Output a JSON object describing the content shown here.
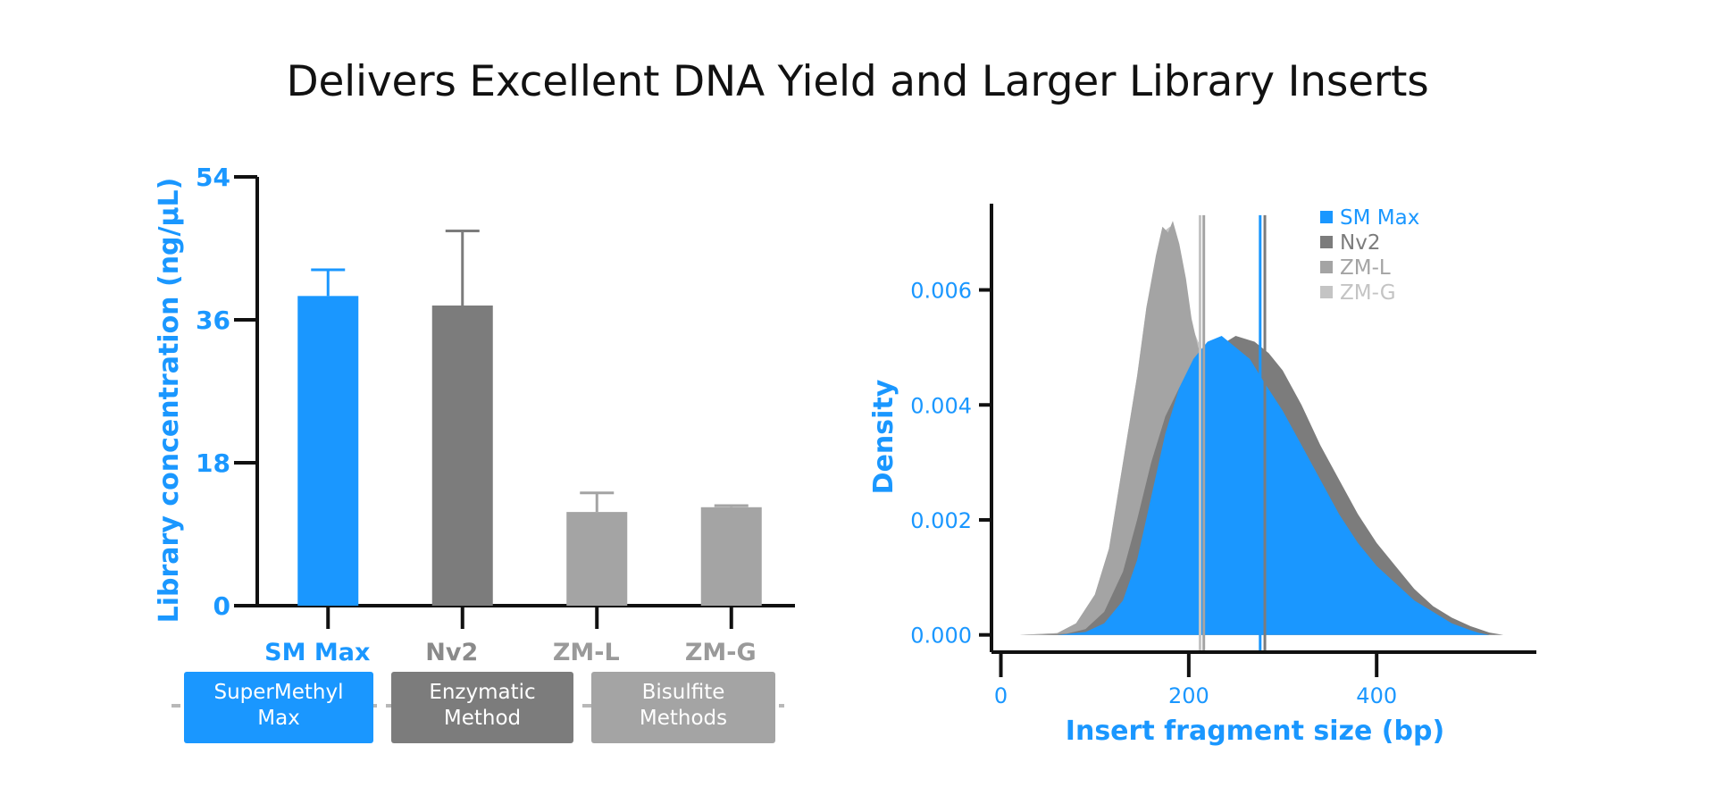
{
  "page": {
    "title": "Delivers Excellent DNA Yield and Larger Library Inserts"
  },
  "colors": {
    "accent_blue": "#1a97ff",
    "dark_gray": "#7c7c7c",
    "mid_gray": "#a4a4a4",
    "light_gray": "#c4c4c4",
    "axis": "#111111"
  },
  "chart_data": [
    {
      "type": "bar",
      "ylabel": "Library concentration (ng/µL)",
      "ylim": [
        0,
        54
      ],
      "yticks": [
        0,
        18,
        36,
        54
      ],
      "categories": [
        "SM Max",
        "Nv2",
        "ZM-L",
        "ZM-G"
      ],
      "values": [
        39,
        37.8,
        11.8,
        12.4
      ],
      "error_upper": [
        42.3,
        47.2,
        14.2,
        12.6
      ],
      "bar_colors": [
        "#1a97ff",
        "#7c7c7c",
        "#a4a4a4",
        "#a4a4a4"
      ],
      "label_colors": [
        "#1a97ff",
        "#8a8a8a",
        "#9a9a9a",
        "#9a9a9a"
      ],
      "groups": [
        {
          "label_lines": [
            "SuperMethyl",
            "Max"
          ],
          "color": "#1a97ff"
        },
        {
          "label_lines": [
            "Enzymatic",
            "Method"
          ],
          "color": "#7c7c7c"
        },
        {
          "label_lines": [
            "Bisulfite",
            "Methods"
          ],
          "color": "#a4a4a4"
        }
      ]
    },
    {
      "type": "area",
      "xlabel": "Insert fragment size (bp)",
      "ylabel": "Density",
      "xlim": [
        -10,
        570
      ],
      "ylim": [
        -0.0003,
        0.0075
      ],
      "xticks": [
        0,
        200,
        400
      ],
      "yticks": [
        0.0,
        0.002,
        0.004,
        0.006
      ],
      "ytick_labels": [
        "0.000",
        "0.002",
        "0.004",
        "0.006"
      ],
      "legend_position": "top-right",
      "series": [
        {
          "name": "ZM-G",
          "color": "#c4c4c4",
          "median_line": 212,
          "points": [
            [
              20,
              0
            ],
            [
              60,
              3e-05
            ],
            [
              80,
              0.0002
            ],
            [
              100,
              0.0007
            ],
            [
              115,
              0.0015
            ],
            [
              125,
              0.0025
            ],
            [
              135,
              0.0035
            ],
            [
              145,
              0.0045
            ],
            [
              155,
              0.0057
            ],
            [
              165,
              0.0065
            ],
            [
              172,
              0.007
            ],
            [
              180,
              0.0071
            ],
            [
              188,
              0.0069
            ],
            [
              195,
              0.0063
            ],
            [
              200,
              0.0056
            ],
            [
              205,
              0.0053
            ],
            [
              210,
              0.0051
            ],
            [
              220,
              0.0048
            ],
            [
              240,
              0.0044
            ],
            [
              260,
              0.004
            ],
            [
              280,
              0.0036
            ],
            [
              300,
              0.0031
            ],
            [
              320,
              0.0026
            ],
            [
              340,
              0.0021
            ],
            [
              360,
              0.0017
            ],
            [
              380,
              0.0013
            ],
            [
              400,
              0.001
            ],
            [
              420,
              0.0007
            ],
            [
              440,
              0.0005
            ],
            [
              460,
              0.0003
            ],
            [
              480,
              0.00015
            ],
            [
              500,
              5e-05
            ],
            [
              520,
              0
            ]
          ]
        },
        {
          "name": "ZM-L",
          "color": "#a4a4a4",
          "median_line": 216,
          "points": [
            [
              20,
              0
            ],
            [
              60,
              3e-05
            ],
            [
              80,
              0.0002
            ],
            [
              100,
              0.0007
            ],
            [
              115,
              0.0015
            ],
            [
              125,
              0.0025
            ],
            [
              135,
              0.0035
            ],
            [
              145,
              0.0045
            ],
            [
              155,
              0.0057
            ],
            [
              165,
              0.0066
            ],
            [
              172,
              0.0071
            ],
            [
              178,
              0.007
            ],
            [
              183,
              0.0072
            ],
            [
              190,
              0.0068
            ],
            [
              197,
              0.0062
            ],
            [
              203,
              0.0055
            ],
            [
              210,
              0.005
            ],
            [
              220,
              0.0048
            ],
            [
              240,
              0.0044
            ],
            [
              260,
              0.004
            ],
            [
              280,
              0.0036
            ],
            [
              300,
              0.0031
            ],
            [
              320,
              0.0026
            ],
            [
              340,
              0.0021
            ],
            [
              360,
              0.0017
            ],
            [
              380,
              0.0013
            ],
            [
              400,
              0.001
            ],
            [
              420,
              0.0007
            ],
            [
              440,
              0.0005
            ],
            [
              460,
              0.0003
            ],
            [
              480,
              0.00015
            ],
            [
              500,
              5e-05
            ],
            [
              520,
              0
            ]
          ]
        },
        {
          "name": "Nv2",
          "color": "#7c7c7c",
          "median_line": 281,
          "points": [
            [
              40,
              0
            ],
            [
              70,
              2e-05
            ],
            [
              90,
              0.0001
            ],
            [
              110,
              0.0004
            ],
            [
              130,
              0.0011
            ],
            [
              145,
              0.002
            ],
            [
              160,
              0.003
            ],
            [
              175,
              0.0038
            ],
            [
              190,
              0.0043
            ],
            [
              210,
              0.0047
            ],
            [
              230,
              0.005
            ],
            [
              250,
              0.0052
            ],
            [
              270,
              0.0051
            ],
            [
              285,
              0.0049
            ],
            [
              300,
              0.0046
            ],
            [
              320,
              0.004
            ],
            [
              340,
              0.0033
            ],
            [
              360,
              0.0027
            ],
            [
              380,
              0.0021
            ],
            [
              400,
              0.0016
            ],
            [
              420,
              0.0012
            ],
            [
              440,
              0.0008
            ],
            [
              460,
              0.0005
            ],
            [
              480,
              0.0003
            ],
            [
              500,
              0.00015
            ],
            [
              520,
              4e-05
            ],
            [
              535,
              0
            ]
          ]
        },
        {
          "name": "SM Max",
          "color": "#1a97ff",
          "median_line": 276,
          "points": [
            [
              60,
              0
            ],
            [
              90,
              5e-05
            ],
            [
              110,
              0.0002
            ],
            [
              130,
              0.0006
            ],
            [
              145,
              0.0013
            ],
            [
              160,
              0.0024
            ],
            [
              175,
              0.0035
            ],
            [
              190,
              0.0043
            ],
            [
              205,
              0.0048
            ],
            [
              220,
              0.0051
            ],
            [
              235,
              0.0052
            ],
            [
              250,
              0.005
            ],
            [
              265,
              0.0048
            ],
            [
              280,
              0.0044
            ],
            [
              300,
              0.0039
            ],
            [
              320,
              0.0033
            ],
            [
              340,
              0.0027
            ],
            [
              360,
              0.0021
            ],
            [
              380,
              0.0016
            ],
            [
              400,
              0.0012
            ],
            [
              420,
              0.0009
            ],
            [
              440,
              0.0006
            ],
            [
              460,
              0.0004
            ],
            [
              480,
              0.0002
            ],
            [
              500,
              8e-05
            ],
            [
              510,
              3e-05
            ],
            [
              520,
              0
            ]
          ]
        }
      ],
      "legend": [
        {
          "name": "SM Max",
          "color": "#1a97ff"
        },
        {
          "name": "Nv2",
          "color": "#7c7c7c"
        },
        {
          "name": "ZM-L",
          "color": "#a4a4a4"
        },
        {
          "name": "ZM-G",
          "color": "#c4c4c4"
        }
      ]
    }
  ]
}
